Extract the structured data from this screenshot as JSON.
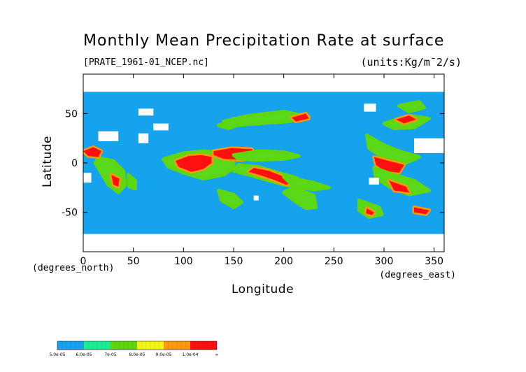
{
  "chart_data": {
    "type": "heatmap",
    "title": "Monthly Mean Precipitation Rate at surface",
    "source_file": "[PRATE_1961-01_NCEP.nc]",
    "units": "(units:Kg/m¯2/s)",
    "xlabel": "Longitude",
    "ylabel": "Latitude",
    "x_unit_note": "(degrees_east)",
    "y_unit_note": "(degrees_north)",
    "xlim": [
      0,
      360
    ],
    "ylim": [
      -90,
      90
    ],
    "x_ticks": [
      0,
      50,
      100,
      150,
      200,
      250,
      300,
      350
    ],
    "x_tick_labels": [
      "0",
      "50",
      "100",
      "150",
      "200",
      "250",
      "300",
      "350"
    ],
    "y_ticks": [
      50,
      0,
      -50
    ],
    "y_tick_labels": [
      "50",
      "0",
      "-50"
    ],
    "background_color": "#14a3ec",
    "missing_color": "#ffffff",
    "color_bins": [
      "#14a3ec",
      "#18ed96",
      "#5fd60e",
      "#f5f514",
      "#fb9a0f",
      "#ff0f0f"
    ],
    "legend_labels": [
      "5.0e-05",
      "6.0e-05",
      "7e-05",
      "8.0e-05",
      "9.0e-05",
      "1.0e-04",
      "∞"
    ],
    "precip_regions": [
      {
        "level": 2,
        "points": [
          [
            80,
            4
          ],
          [
            100,
            10
          ],
          [
            120,
            12
          ],
          [
            140,
            10
          ],
          [
            150,
            3
          ],
          [
            150,
            -5
          ],
          [
            140,
            -12
          ],
          [
            120,
            -16
          ],
          [
            100,
            -10
          ],
          [
            85,
            -4
          ]
        ]
      },
      {
        "level": 5,
        "points": [
          [
            92,
            2
          ],
          [
            105,
            7
          ],
          [
            118,
            8
          ],
          [
            128,
            6
          ],
          [
            128,
            0
          ],
          [
            120,
            -6
          ],
          [
            108,
            -9
          ],
          [
            95,
            -4
          ]
        ]
      },
      {
        "level": 5,
        "points": [
          [
            130,
            12
          ],
          [
            148,
            15
          ],
          [
            168,
            14
          ],
          [
            172,
            8
          ],
          [
            160,
            3
          ],
          [
            140,
            4
          ],
          [
            130,
            8
          ]
        ]
      },
      {
        "level": 2,
        "points": [
          [
            150,
            8
          ],
          [
            175,
            12
          ],
          [
            200,
            11
          ],
          [
            215,
            7
          ],
          [
            200,
            4
          ],
          [
            175,
            3
          ],
          [
            155,
            4
          ]
        ]
      },
      {
        "level": 2,
        "points": [
          [
            155,
            -2
          ],
          [
            175,
            -4
          ],
          [
            195,
            -10
          ],
          [
            212,
            -15
          ],
          [
            225,
            -22
          ],
          [
            220,
            -26
          ],
          [
            200,
            -22
          ],
          [
            182,
            -17
          ],
          [
            165,
            -12
          ],
          [
            150,
            -8
          ]
        ]
      },
      {
        "level": 5,
        "points": [
          [
            170,
            -5
          ],
          [
            185,
            -8
          ],
          [
            200,
            -14
          ],
          [
            210,
            -20
          ],
          [
            202,
            -22
          ],
          [
            190,
            -17
          ],
          [
            175,
            -12
          ],
          [
            165,
            -9
          ]
        ]
      },
      {
        "level": 2,
        "points": [
          [
            200,
            -14
          ],
          [
            230,
            -20
          ],
          [
            245,
            -25
          ],
          [
            230,
            -27
          ],
          [
            210,
            -24
          ]
        ]
      },
      {
        "level": 2,
        "points": [
          [
            210,
            -25
          ],
          [
            230,
            -33
          ],
          [
            232,
            -45
          ],
          [
            222,
            -46
          ],
          [
            210,
            -38
          ],
          [
            200,
            -30
          ]
        ]
      },
      {
        "level": 2,
        "points": [
          [
            135,
            -28
          ],
          [
            150,
            -32
          ],
          [
            158,
            -40
          ],
          [
            150,
            -45
          ],
          [
            138,
            -38
          ]
        ]
      },
      {
        "level": 2,
        "points": [
          [
            140,
            42
          ],
          [
            165,
            48
          ],
          [
            200,
            52
          ],
          [
            225,
            47
          ],
          [
            205,
            42
          ],
          [
            175,
            40
          ],
          [
            150,
            38
          ]
        ]
      },
      {
        "level": 5,
        "points": [
          [
            208,
            46
          ],
          [
            222,
            50
          ],
          [
            225,
            45
          ],
          [
            212,
            42
          ]
        ]
      },
      {
        "level": 2,
        "points": [
          [
            135,
            38
          ],
          [
            150,
            45
          ],
          [
            158,
            40
          ],
          [
            145,
            35
          ]
        ]
      },
      {
        "level": 2,
        "points": [
          [
            283,
            28
          ],
          [
            300,
            18
          ],
          [
            315,
            12
          ],
          [
            335,
            6
          ],
          [
            322,
            0
          ],
          [
            300,
            5
          ],
          [
            285,
            15
          ]
        ]
      },
      {
        "level": 5,
        "points": [
          [
            290,
            6
          ],
          [
            305,
            2
          ],
          [
            320,
            -2
          ],
          [
            315,
            -10
          ],
          [
            300,
            -8
          ],
          [
            292,
            -2
          ]
        ]
      },
      {
        "level": 2,
        "points": [
          [
            290,
            -5
          ],
          [
            310,
            -12
          ],
          [
            330,
            -18
          ],
          [
            345,
            -28
          ],
          [
            325,
            -32
          ],
          [
            305,
            -24
          ],
          [
            292,
            -15
          ]
        ]
      },
      {
        "level": 5,
        "points": [
          [
            305,
            -18
          ],
          [
            322,
            -24
          ],
          [
            325,
            -30
          ],
          [
            310,
            -28
          ]
        ]
      },
      {
        "level": 2,
        "points": [
          [
            275,
            -38
          ],
          [
            295,
            -45
          ],
          [
            298,
            -52
          ],
          [
            285,
            -55
          ],
          [
            275,
            -48
          ]
        ]
      },
      {
        "level": 5,
        "points": [
          [
            283,
            -46
          ],
          [
            290,
            -50
          ],
          [
            288,
            -53
          ],
          [
            282,
            -51
          ]
        ]
      },
      {
        "level": 2,
        "points": [
          [
            300,
            40
          ],
          [
            325,
            48
          ],
          [
            345,
            45
          ],
          [
            330,
            36
          ],
          [
            310,
            35
          ]
        ]
      },
      {
        "level": 5,
        "points": [
          [
            312,
            44
          ],
          [
            325,
            48
          ],
          [
            332,
            44
          ],
          [
            320,
            40
          ]
        ]
      },
      {
        "level": 2,
        "points": [
          [
            315,
            58
          ],
          [
            335,
            62
          ],
          [
            340,
            56
          ],
          [
            325,
            52
          ]
        ]
      },
      {
        "level": 2,
        "points": [
          [
            15,
            5
          ],
          [
            30,
            2
          ],
          [
            40,
            -8
          ],
          [
            42,
            -22
          ],
          [
            35,
            -30
          ],
          [
            25,
            -22
          ],
          [
            18,
            -10
          ],
          [
            12,
            0
          ]
        ]
      },
      {
        "level": 5,
        "points": [
          [
            28,
            -12
          ],
          [
            36,
            -16
          ],
          [
            35,
            -24
          ],
          [
            30,
            -22
          ]
        ]
      },
      {
        "level": 2,
        "points": [
          [
            45,
            -12
          ],
          [
            52,
            -18
          ],
          [
            52,
            -26
          ],
          [
            46,
            -24
          ]
        ]
      },
      {
        "level": 5,
        "points": [
          [
            0,
            12
          ],
          [
            10,
            16
          ],
          [
            18,
            12
          ],
          [
            15,
            6
          ],
          [
            5,
            7
          ]
        ]
      },
      {
        "level": 5,
        "points": [
          [
            330,
            -45
          ],
          [
            345,
            -48
          ],
          [
            342,
            -52
          ],
          [
            330,
            -50
          ]
        ]
      }
    ],
    "missing_regions": [
      {
        "points": [
          [
            0,
            -72
          ],
          [
            360,
            -72
          ],
          [
            360,
            -90
          ],
          [
            0,
            -90
          ]
        ]
      },
      {
        "points": [
          [
            0,
            90
          ],
          [
            360,
            90
          ],
          [
            360,
            72
          ],
          [
            0,
            72
          ]
        ]
      },
      {
        "points": [
          [
            55,
            55
          ],
          [
            70,
            55
          ],
          [
            70,
            48
          ],
          [
            55,
            48
          ]
        ]
      },
      {
        "points": [
          [
            70,
            40
          ],
          [
            85,
            40
          ],
          [
            85,
            33
          ],
          [
            70,
            33
          ]
        ]
      },
      {
        "points": [
          [
            15,
            32
          ],
          [
            35,
            32
          ],
          [
            35,
            22
          ],
          [
            15,
            22
          ]
        ]
      },
      {
        "points": [
          [
            55,
            30
          ],
          [
            65,
            30
          ],
          [
            65,
            20
          ],
          [
            55,
            20
          ]
        ]
      },
      {
        "points": [
          [
            330,
            25
          ],
          [
            360,
            25
          ],
          [
            360,
            10
          ],
          [
            330,
            10
          ]
        ]
      },
      {
        "points": [
          [
            0,
            -10
          ],
          [
            8,
            -10
          ],
          [
            8,
            -20
          ],
          [
            0,
            -20
          ]
        ]
      },
      {
        "points": [
          [
            280,
            60
          ],
          [
            292,
            60
          ],
          [
            292,
            52
          ],
          [
            280,
            52
          ]
        ]
      },
      {
        "points": [
          [
            285,
            -15
          ],
          [
            295,
            -15
          ],
          [
            295,
            -22
          ],
          [
            285,
            -22
          ]
        ]
      },
      {
        "points": [
          [
            170,
            -33
          ],
          [
            175,
            -33
          ],
          [
            175,
            -38
          ],
          [
            170,
            -38
          ]
        ]
      },
      {
        "points": [
          [
            0,
            -78
          ],
          [
            40,
            -78
          ],
          [
            40,
            -85
          ],
          [
            0,
            -85
          ]
        ]
      },
      {
        "points": [
          [
            50,
            -80
          ],
          [
            90,
            -80
          ],
          [
            90,
            -86
          ],
          [
            50,
            -86
          ]
        ]
      },
      {
        "points": [
          [
            160,
            -80
          ],
          [
            200,
            -80
          ],
          [
            200,
            -86
          ],
          [
            160,
            -86
          ]
        ]
      },
      {
        "points": [
          [
            295,
            -82
          ],
          [
            305,
            -82
          ],
          [
            305,
            -86
          ],
          [
            295,
            -86
          ]
        ]
      },
      {
        "points": [
          [
            340,
            -78
          ],
          [
            350,
            -78
          ],
          [
            350,
            -82
          ],
          [
            340,
            -82
          ]
        ]
      }
    ]
  }
}
